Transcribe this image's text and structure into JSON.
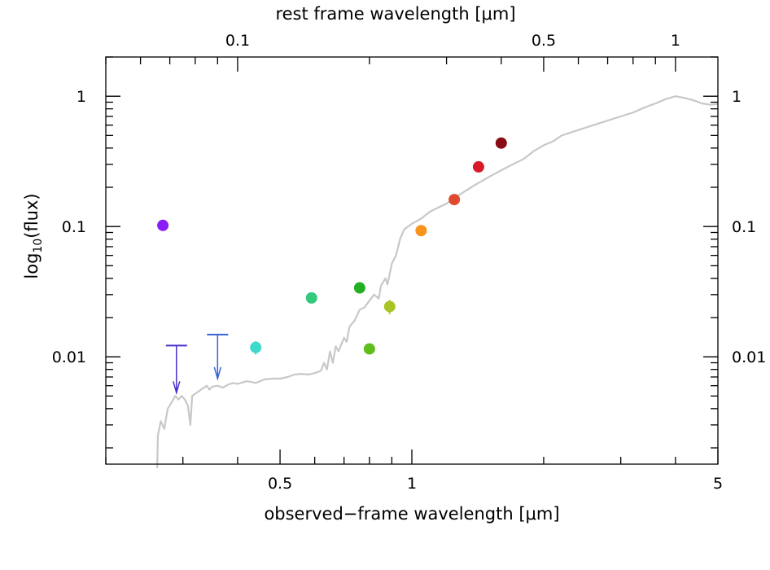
{
  "chart_data": {
    "type": "scatter",
    "title": "",
    "xlabel": "observed−frame wavelength [μm]",
    "ylabel": "log10(flux)",
    "ylabel_parts": {
      "pre": "log",
      "sub": "10",
      "post": "(flux)"
    },
    "x2label": "rest frame wavelength [μm]",
    "x_scale": "log",
    "y_scale": "log",
    "xlim": [
      0.2,
      5
    ],
    "ylim": [
      0.0015,
      2
    ],
    "rest_frame_redshift_factor": 4.0,
    "x_ticks_labeled": [
      {
        "value": 0.5,
        "label": "0.5"
      },
      {
        "value": 1,
        "label": "1"
      },
      {
        "value": 5,
        "label": "5"
      }
    ],
    "x2_ticks_labeled": [
      {
        "value": 0.1,
        "label": "0.1"
      },
      {
        "value": 0.5,
        "label": "0.5"
      },
      {
        "value": 1,
        "label": "1"
      }
    ],
    "y_ticks_labeled": [
      {
        "value": 0.01,
        "label": "0.01"
      },
      {
        "value": 0.1,
        "label": "0.1"
      },
      {
        "value": 1,
        "label": "1"
      }
    ],
    "grid": false,
    "legend": "none",
    "detections": [
      {
        "x": 0.27,
        "y": 0.102,
        "err": 0.0,
        "color": "#8a1cf5"
      },
      {
        "x": 0.44,
        "y": 0.0118,
        "err": 0.0014,
        "color": "#3cd9cc"
      },
      {
        "x": 0.59,
        "y": 0.0283,
        "err": 0.0,
        "color": "#33c97f"
      },
      {
        "x": 0.76,
        "y": 0.0338,
        "err": 0.0,
        "color": "#22b022"
      },
      {
        "x": 0.8,
        "y": 0.0115,
        "err": 0.0,
        "color": "#5fbf1a"
      },
      {
        "x": 0.89,
        "y": 0.0243,
        "err": 0.003,
        "color": "#a8c424"
      },
      {
        "x": 1.05,
        "y": 0.093,
        "err": 0.0,
        "color": "#f7941d"
      },
      {
        "x": 1.25,
        "y": 0.161,
        "err": 0.0,
        "color": "#e04a2e"
      },
      {
        "x": 1.42,
        "y": 0.287,
        "err": 0.0,
        "color": "#d81b2b"
      },
      {
        "x": 1.6,
        "y": 0.437,
        "err": 0.0,
        "color": "#8b0b14"
      }
    ],
    "upper_limits": [
      {
        "x": 0.29,
        "y": 0.0122,
        "arrow_to": 0.0053,
        "color": "#4a2fc8"
      },
      {
        "x": 0.36,
        "y": 0.0148,
        "arrow_to": 0.0068,
        "color": "#3a63d8"
      }
    ],
    "sed_curve": {
      "color": "#c8c8c8",
      "points": [
        [
          0.262,
          0.0014
        ],
        [
          0.263,
          0.0025
        ],
        [
          0.267,
          0.0032
        ],
        [
          0.272,
          0.0028
        ],
        [
          0.277,
          0.004
        ],
        [
          0.283,
          0.0045
        ],
        [
          0.288,
          0.005
        ],
        [
          0.293,
          0.0047
        ],
        [
          0.298,
          0.005
        ],
        [
          0.303,
          0.0047
        ],
        [
          0.308,
          0.0042
        ],
        [
          0.312,
          0.003
        ],
        [
          0.315,
          0.005
        ],
        [
          0.32,
          0.0052
        ],
        [
          0.33,
          0.0056
        ],
        [
          0.34,
          0.006
        ],
        [
          0.345,
          0.0056
        ],
        [
          0.35,
          0.0059
        ],
        [
          0.36,
          0.006
        ],
        [
          0.37,
          0.0058
        ],
        [
          0.38,
          0.0061
        ],
        [
          0.39,
          0.0063
        ],
        [
          0.4,
          0.0062
        ],
        [
          0.42,
          0.0065
        ],
        [
          0.44,
          0.0063
        ],
        [
          0.46,
          0.0067
        ],
        [
          0.48,
          0.0068
        ],
        [
          0.5,
          0.0068
        ],
        [
          0.52,
          0.007
        ],
        [
          0.54,
          0.0073
        ],
        [
          0.56,
          0.0074
        ],
        [
          0.58,
          0.0073
        ],
        [
          0.6,
          0.0075
        ],
        [
          0.62,
          0.0078
        ],
        [
          0.63,
          0.009
        ],
        [
          0.64,
          0.008
        ],
        [
          0.65,
          0.011
        ],
        [
          0.66,
          0.009
        ],
        [
          0.67,
          0.012
        ],
        [
          0.68,
          0.011
        ],
        [
          0.7,
          0.014
        ],
        [
          0.71,
          0.013
        ],
        [
          0.72,
          0.017
        ],
        [
          0.74,
          0.019
        ],
        [
          0.76,
          0.023
        ],
        [
          0.78,
          0.024
        ],
        [
          0.8,
          0.027
        ],
        [
          0.82,
          0.03
        ],
        [
          0.84,
          0.028
        ],
        [
          0.85,
          0.035
        ],
        [
          0.87,
          0.04
        ],
        [
          0.88,
          0.036
        ],
        [
          0.9,
          0.052
        ],
        [
          0.92,
          0.06
        ],
        [
          0.94,
          0.08
        ],
        [
          0.96,
          0.095
        ],
        [
          1.0,
          0.105
        ],
        [
          1.05,
          0.115
        ],
        [
          1.1,
          0.13
        ],
        [
          1.15,
          0.14
        ],
        [
          1.2,
          0.15
        ],
        [
          1.3,
          0.18
        ],
        [
          1.4,
          0.21
        ],
        [
          1.5,
          0.24
        ],
        [
          1.6,
          0.27
        ],
        [
          1.7,
          0.3
        ],
        [
          1.8,
          0.33
        ],
        [
          1.9,
          0.38
        ],
        [
          2.0,
          0.42
        ],
        [
          2.1,
          0.45
        ],
        [
          2.2,
          0.5
        ],
        [
          2.4,
          0.55
        ],
        [
          2.6,
          0.6
        ],
        [
          2.8,
          0.65
        ],
        [
          3.0,
          0.7
        ],
        [
          3.2,
          0.75
        ],
        [
          3.4,
          0.82
        ],
        [
          3.6,
          0.88
        ],
        [
          3.8,
          0.95
        ],
        [
          4.0,
          1.0
        ],
        [
          4.2,
          0.97
        ],
        [
          4.4,
          0.93
        ],
        [
          4.6,
          0.88
        ],
        [
          4.8,
          0.86
        ],
        [
          5.0,
          0.87
        ]
      ]
    }
  }
}
